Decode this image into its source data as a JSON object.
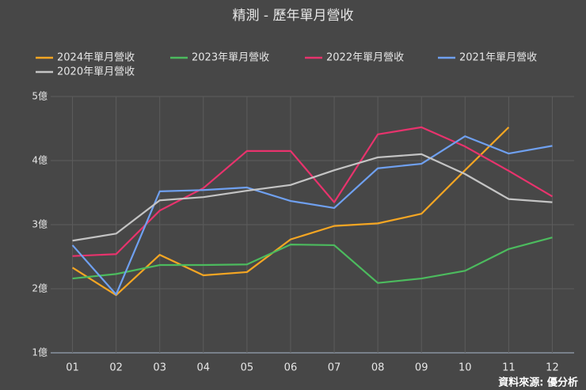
{
  "chart_data": {
    "type": "line",
    "title": "精測 - 歷年單月營收",
    "categories": [
      "01",
      "02",
      "03",
      "04",
      "05",
      "06",
      "07",
      "08",
      "09",
      "10",
      "11",
      "12"
    ],
    "series": [
      {
        "name": "2024年單月營收",
        "color": "#f5a623",
        "values": [
          2.33,
          1.9,
          2.53,
          2.21,
          2.26,
          2.77,
          2.98,
          3.02,
          3.17,
          3.85,
          4.52,
          null
        ]
      },
      {
        "name": "2023年單月營收",
        "color": "#4cbb5e",
        "values": [
          2.16,
          2.23,
          2.37,
          2.37,
          2.38,
          2.69,
          2.68,
          2.09,
          2.16,
          2.28,
          2.62,
          2.8
        ]
      },
      {
        "name": "2022年單月營收",
        "color": "#e8336d",
        "values": [
          2.51,
          2.54,
          3.22,
          3.57,
          4.15,
          4.15,
          3.35,
          4.41,
          4.52,
          4.22,
          3.84,
          3.44
        ]
      },
      {
        "name": "2021年單月營收",
        "color": "#6fa0f0",
        "values": [
          2.68,
          1.91,
          3.52,
          3.54,
          3.58,
          3.37,
          3.26,
          3.88,
          3.95,
          4.38,
          4.11,
          4.23
        ]
      },
      {
        "name": "2020年單月營收",
        "color": "#c4c4c4",
        "values": [
          2.75,
          2.86,
          3.38,
          3.43,
          3.53,
          3.62,
          3.85,
          4.05,
          4.1,
          3.79,
          3.4,
          3.35
        ]
      }
    ],
    "ylim": [
      1,
      5
    ],
    "yticks": [
      {
        "value": 1,
        "label": "1億"
      },
      {
        "value": 2,
        "label": "2億"
      },
      {
        "value": 3,
        "label": "3億"
      },
      {
        "value": 4,
        "label": "4億"
      },
      {
        "value": 5,
        "label": "5億"
      }
    ],
    "grid": true,
    "source": "資料來源: 優分析"
  }
}
